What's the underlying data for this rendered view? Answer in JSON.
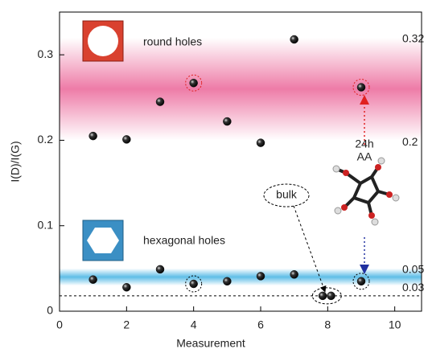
{
  "chart_data": {
    "type": "scatter",
    "x_label": "Measurement",
    "y_label": "I(D)/I(G)",
    "xlim": [
      0,
      10.8
    ],
    "ylim": [
      0,
      0.35
    ],
    "xticks": [
      0,
      2,
      4,
      6,
      8,
      10
    ],
    "yticks": [
      0.0,
      0.1,
      0.2,
      0.3
    ],
    "reference_line": 0.018,
    "bands": [
      {
        "name": "round holes",
        "low": 0.2,
        "high": 0.32,
        "color": "#e8508a"
      },
      {
        "name": "hexagonal holes",
        "low": 0.03,
        "high": 0.05,
        "color": "#29a8df"
      }
    ],
    "series": [
      {
        "x": [
          1,
          2,
          3,
          4,
          5,
          6,
          7,
          9
        ],
        "values": [
          0.205,
          0.201,
          0.245,
          0.267,
          0.222,
          0.197,
          0.318,
          0.262
        ],
        "color": "#111111"
      },
      {
        "x": [
          1,
          2,
          3,
          4,
          5,
          6,
          7,
          9
        ],
        "values": [
          0.037,
          0.028,
          0.049,
          0.032,
          0.035,
          0.041,
          0.043,
          0.035
        ],
        "color": "#111111"
      },
      {
        "x": [
          7.85,
          8.1
        ],
        "values": [
          0.018,
          0.018
        ],
        "color": "#111111"
      }
    ],
    "annotations": [
      "24h",
      "AA",
      "bulk"
    ]
  }
}
